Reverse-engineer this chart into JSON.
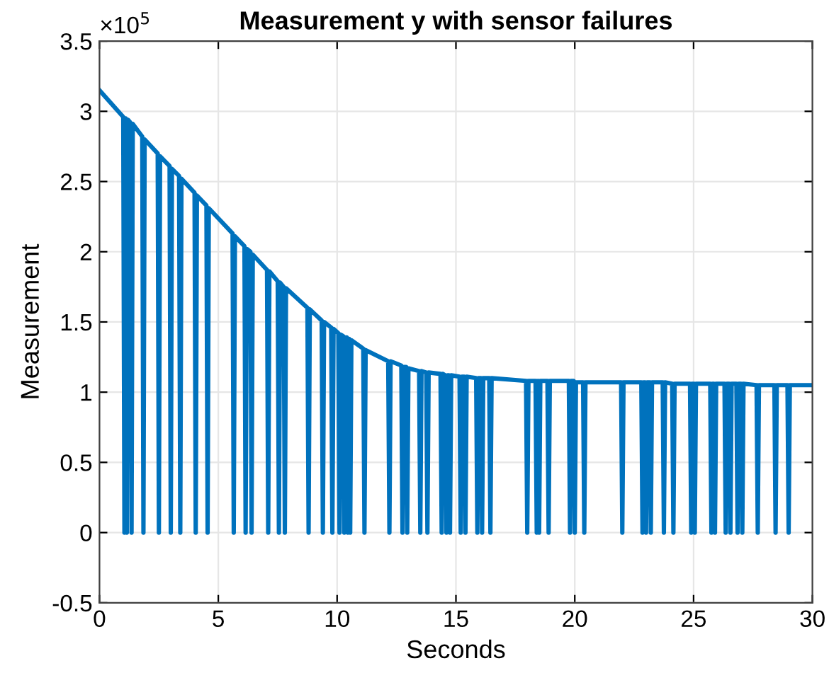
{
  "chart_data": {
    "type": "line",
    "title": "Measurement y with sensor failures",
    "xlabel": "Seconds",
    "ylabel": "Measurement",
    "annotations": [
      "×10$^{5}$"
    ],
    "xlim": [
      0,
      30
    ],
    "xticks": [
      0,
      5,
      10,
      15,
      20,
      25,
      30
    ],
    "ylim": [
      -0.5,
      3.5
    ],
    "yticks": [
      -0.5,
      0,
      0.5,
      1,
      1.5,
      2,
      2.5,
      3,
      3.5
    ],
    "grid": true,
    "marker": "none",
    "line_style": "solid",
    "series": [
      {
        "color": "#0072bd",
        "x": [
          0,
          1.0,
          1.05,
          1.1,
          1.15,
          1.2,
          1.3,
          1.35,
          1.4,
          1.8,
          1.85,
          1.9,
          2.45,
          2.5,
          2.55,
          2.95,
          3.0,
          3.05,
          3.35,
          3.4,
          3.45,
          4.0,
          4.05,
          4.1,
          4.5,
          4.55,
          4.6,
          5.6,
          5.65,
          5.7,
          6.1,
          6.15,
          6.2,
          6.35,
          6.4,
          6.45,
          7.05,
          7.1,
          7.15,
          7.5,
          7.55,
          7.6,
          7.75,
          7.8,
          7.85,
          8.75,
          8.8,
          8.85,
          9.35,
          9.4,
          9.45,
          9.75,
          9.8,
          9.85,
          10.05,
          10.1,
          10.15,
          10.25,
          10.3,
          10.35,
          10.4,
          10.45,
          10.5,
          10.55,
          10.6,
          11.1,
          11.15,
          11.2,
          12.15,
          12.2,
          12.25,
          12.7,
          12.75,
          12.8,
          12.9,
          12.95,
          13.0,
          13.45,
          13.5,
          13.55,
          13.75,
          13.8,
          13.85,
          14.35,
          14.4,
          14.45,
          14.55,
          14.6,
          14.65,
          14.7,
          14.75,
          14.8,
          15.15,
          15.2,
          15.25,
          15.35,
          15.4,
          15.45,
          15.85,
          15.9,
          15.95,
          16.05,
          16.1,
          16.15,
          16.4,
          16.45,
          16.5,
          17.95,
          18.0,
          18.05,
          18.35,
          18.4,
          18.45,
          18.5,
          18.55,
          18.85,
          18.9,
          18.95,
          19.75,
          19.8,
          19.85,
          19.95,
          20.0,
          20.05,
          20.35,
          20.4,
          20.45,
          21.95,
          22.0,
          22.05,
          22.8,
          22.85,
          22.9,
          22.95,
          23.0,
          23.05,
          23.15,
          23.2,
          23.25,
          23.7,
          23.75,
          23.8,
          24.1,
          24.15,
          24.2,
          24.85,
          24.9,
          24.95,
          25.0,
          25.05,
          25.1,
          25.7,
          25.75,
          25.8,
          25.85,
          25.9,
          25.95,
          26.3,
          26.35,
          26.4,
          26.5,
          26.55,
          26.6,
          26.8,
          26.85,
          26.9,
          27.0,
          27.05,
          27.1,
          27.65,
          27.7,
          27.75,
          28.4,
          28.45,
          28.5,
          28.95,
          29.0,
          29.05,
          30
        ],
        "values": [
          3.15,
          2.96,
          0,
          2.95,
          0,
          2.94,
          2.92,
          0,
          2.91,
          2.82,
          0,
          2.8,
          2.7,
          0,
          2.68,
          2.61,
          0,
          2.59,
          2.54,
          0,
          2.52,
          2.42,
          0,
          2.4,
          2.33,
          0,
          2.31,
          2.13,
          0,
          2.11,
          2.04,
          0,
          2.02,
          2.0,
          0,
          1.98,
          1.87,
          0,
          1.86,
          1.79,
          0,
          1.78,
          1.75,
          0,
          1.74,
          1.6,
          0,
          1.59,
          1.51,
          0,
          1.5,
          1.46,
          0,
          1.45,
          1.42,
          0,
          1.41,
          1.4,
          0,
          1.39,
          1.39,
          0,
          1.38,
          0,
          1.37,
          1.31,
          0,
          1.3,
          1.22,
          0,
          1.22,
          1.19,
          0,
          1.18,
          1.18,
          0,
          1.17,
          1.15,
          0,
          1.15,
          1.14,
          0,
          1.14,
          1.13,
          0,
          1.13,
          1.12,
          0,
          1.12,
          1.12,
          0,
          1.12,
          1.11,
          0,
          1.11,
          1.11,
          0,
          1.11,
          1.1,
          0,
          1.1,
          1.1,
          0,
          1.1,
          1.1,
          0,
          1.1,
          1.08,
          0,
          1.08,
          1.08,
          0,
          1.08,
          0,
          1.08,
          1.08,
          0,
          1.08,
          1.08,
          0,
          1.08,
          1.08,
          0,
          1.07,
          1.07,
          0,
          1.07,
          1.07,
          0,
          1.07,
          1.07,
          0,
          1.07,
          1.07,
          0,
          1.07,
          1.07,
          0,
          1.07,
          1.07,
          0,
          1.07,
          1.06,
          0,
          1.06,
          1.06,
          0,
          1.06,
          1.06,
          0,
          1.06,
          1.06,
          0,
          1.06,
          1.06,
          0,
          1.06,
          1.06,
          0,
          1.06,
          1.06,
          0,
          1.06,
          1.06,
          0,
          1.06,
          1.06,
          0,
          1.06,
          1.05,
          0,
          1.05,
          1.05,
          0,
          1.05,
          1.05,
          0,
          1.05,
          1.05
        ]
      }
    ]
  }
}
